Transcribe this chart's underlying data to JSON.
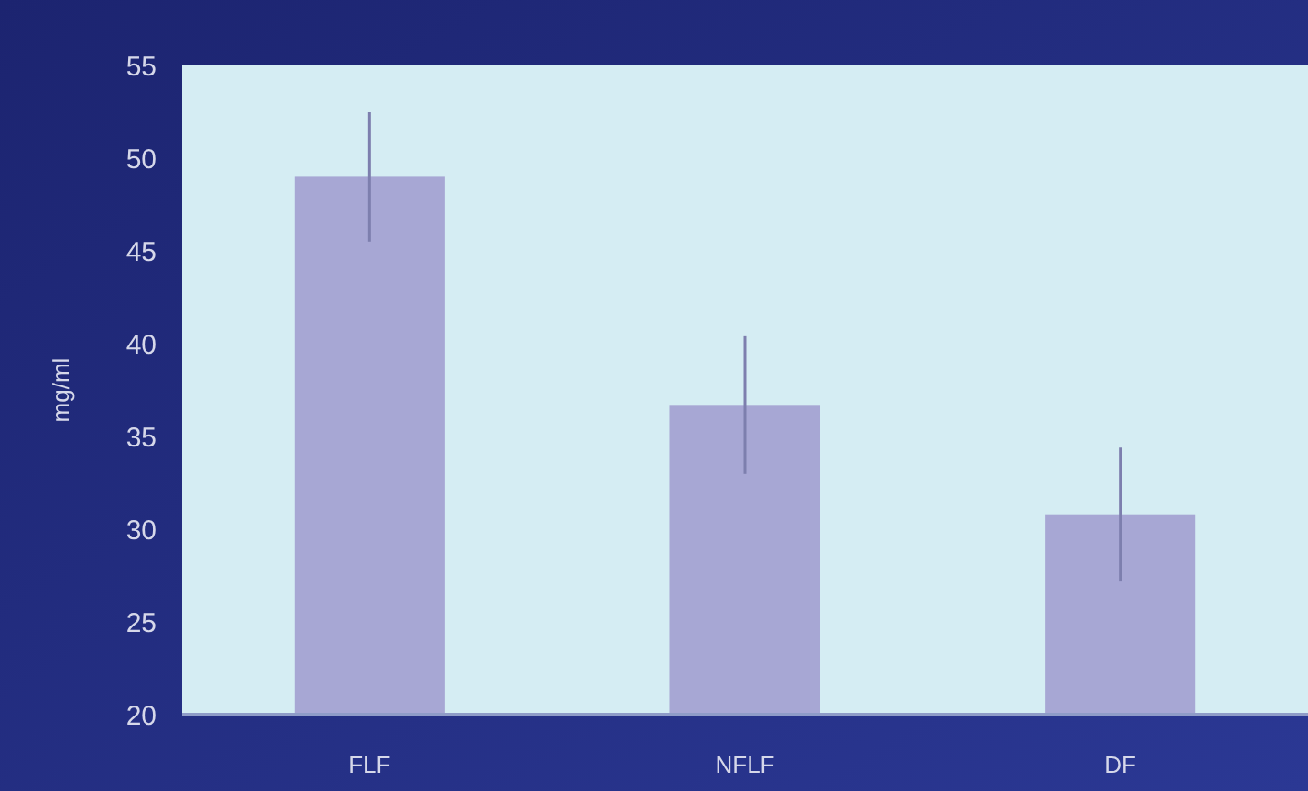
{
  "chart_data": {
    "type": "bar",
    "ylabel": "mg/ml",
    "categories": [
      "FLF",
      "NFLF",
      "DF"
    ],
    "values": [
      49,
      36.7,
      30.8
    ],
    "errors": [
      3.5,
      3.7,
      3.6
    ],
    "color": "#a7a7d4",
    "ylim": [
      20,
      55
    ],
    "yticks": [
      20,
      25,
      30,
      35,
      40,
      45,
      50,
      55
    ],
    "grid": false
  }
}
